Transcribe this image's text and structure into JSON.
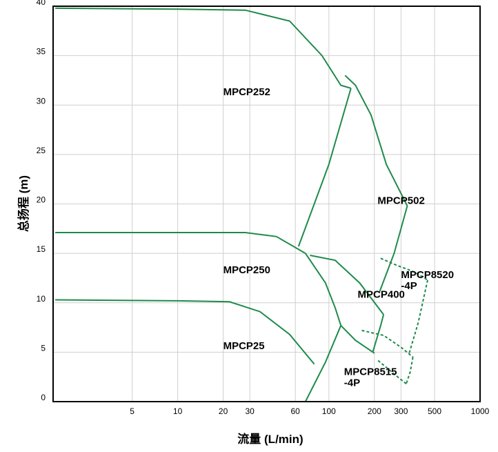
{
  "chart_data": {
    "type": "line",
    "title": "",
    "xlabel": "流量 (L/min)",
    "ylabel": "总扬程 (m)",
    "x_scale": "log",
    "xlim": [
      1.5,
      1000
    ],
    "ylim": [
      0,
      40
    ],
    "x_ticks": [
      5,
      10,
      20,
      30,
      60,
      100,
      200,
      300,
      500,
      1000
    ],
    "y_ticks": [
      0,
      5,
      10,
      15,
      20,
      25,
      30,
      35,
      40
    ],
    "grid": true,
    "colors": {
      "curve": "#1e8a4a",
      "grid": "#cfcfcf",
      "frame": "#000000"
    },
    "labels": [
      {
        "id": "mpcp252",
        "text": "MPCP252",
        "x": 20,
        "y": 31
      },
      {
        "id": "mpcp502",
        "text": "MPCP502",
        "x": 210,
        "y": 20
      },
      {
        "id": "mpcp250",
        "text": "MPCP250",
        "x": 20,
        "y": 13
      },
      {
        "id": "mpcp400",
        "text": "MPCP400",
        "x": 155,
        "y": 10.5
      },
      {
        "id": "mpcp8520",
        "text": [
          "MPCP8520",
          "-4P"
        ],
        "x": 300,
        "y": 12.5
      },
      {
        "id": "mpcp25",
        "text": "MPCP25",
        "x": 20,
        "y": 5.3
      },
      {
        "id": "mpcp8515",
        "text": [
          "MPCP8515",
          "-4P"
        ],
        "x": 126,
        "y": 2.7
      }
    ],
    "curves": [
      {
        "name": "MPCP252",
        "dashed": false,
        "points": [
          [
            1.55,
            39.8
          ],
          [
            10,
            39.7
          ],
          [
            28,
            39.6
          ],
          [
            55,
            38.5
          ],
          [
            90,
            35
          ],
          [
            120,
            32
          ],
          [
            140,
            31.7
          ]
        ]
      },
      {
        "name": "MPCP252",
        "dashed": false,
        "points": [
          [
            140,
            31.7
          ],
          [
            100,
            24
          ],
          [
            63,
            15.7
          ]
        ]
      },
      {
        "name": "MPCP502",
        "dashed": false,
        "points": [
          [
            128,
            33
          ],
          [
            150,
            32
          ],
          [
            190,
            29
          ],
          [
            240,
            24
          ],
          [
            330,
            19.8
          ]
        ]
      },
      {
        "name": "MPCP502",
        "dashed": false,
        "points": [
          [
            330,
            19.8
          ],
          [
            270,
            15
          ],
          [
            215,
            11
          ]
        ]
      },
      {
        "name": "MPCP250",
        "dashed": false,
        "points": [
          [
            1.55,
            17.1
          ],
          [
            10,
            17.1
          ],
          [
            28,
            17.1
          ],
          [
            45,
            16.7
          ],
          [
            70,
            15
          ]
        ]
      },
      {
        "name": "MPCP250",
        "dashed": false,
        "points": [
          [
            70,
            15
          ],
          [
            95,
            12
          ],
          [
            110,
            9.5
          ],
          [
            120,
            7.7
          ]
        ]
      },
      {
        "name": "MPCP250",
        "dashed": false,
        "points": [
          [
            120,
            7.7
          ],
          [
            150,
            6.2
          ],
          [
            200,
            4.9
          ]
        ]
      },
      {
        "name": "MPCP250",
        "dashed": false,
        "points": [
          [
            120,
            7.7
          ],
          [
            95,
            4
          ],
          [
            70,
            0
          ]
        ]
      },
      {
        "name": "MPCP400",
        "dashed": false,
        "points": [
          [
            75,
            14.8
          ],
          [
            110,
            14.3
          ],
          [
            160,
            12
          ],
          [
            230,
            8.8
          ]
        ]
      },
      {
        "name": "MPCP400",
        "dashed": false,
        "points": [
          [
            230,
            8.8
          ],
          [
            220,
            7.7
          ],
          [
            195,
            5
          ]
        ]
      },
      {
        "name": "MPCP25",
        "dashed": false,
        "points": [
          [
            1.55,
            10.3
          ],
          [
            10,
            10.2
          ],
          [
            22,
            10.1
          ],
          [
            35,
            9.1
          ],
          [
            55,
            6.8
          ],
          [
            80,
            3.8
          ]
        ]
      },
      {
        "name": "MPCP8520-4P",
        "dashed": true,
        "points": [
          [
            220,
            14.5
          ],
          [
            280,
            13.8
          ],
          [
            370,
            13.1
          ],
          [
            450,
            12.3
          ]
        ]
      },
      {
        "name": "MPCP8520-4P",
        "dashed": true,
        "points": [
          [
            450,
            12.3
          ],
          [
            390,
            8
          ],
          [
            340,
            4.9
          ]
        ]
      },
      {
        "name": "MPCP8515-4P",
        "dashed": true,
        "points": [
          [
            165,
            7.2
          ],
          [
            230,
            6.7
          ],
          [
            300,
            5.5
          ],
          [
            360,
            4.5
          ]
        ]
      },
      {
        "name": "MPCP8515-4P",
        "dashed": true,
        "points": [
          [
            360,
            4.5
          ],
          [
            345,
            3
          ],
          [
            325,
            1.8
          ]
        ]
      },
      {
        "name": "MPCP8515-4P",
        "dashed": true,
        "points": [
          [
            325,
            1.8
          ],
          [
            280,
            2.6
          ],
          [
            210,
            4.2
          ]
        ]
      }
    ]
  }
}
